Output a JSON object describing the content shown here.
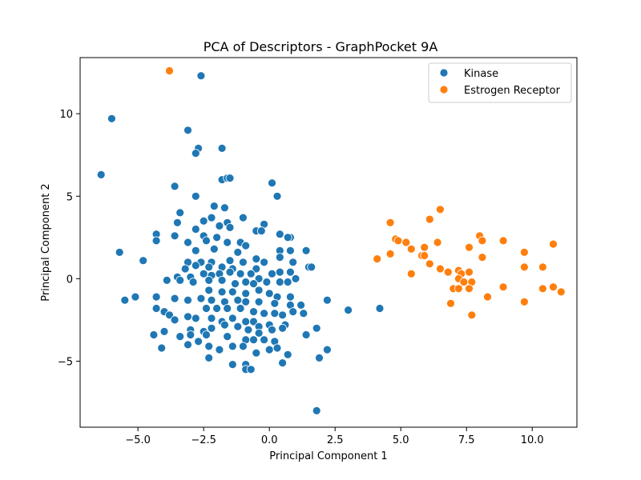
{
  "chart_data": {
    "type": "scatter",
    "title": "PCA of Descriptors - GraphPocket 9A",
    "xlabel": "Principal Component 1",
    "ylabel": "Principal Component 2",
    "xlim": [
      -7.2,
      11.7
    ],
    "ylim": [
      -9.0,
      13.4
    ],
    "xticks": [
      -5.0,
      -2.5,
      0.0,
      2.5,
      5.0,
      7.5,
      10.0
    ],
    "xtick_labels": [
      "−5.0",
      "−2.5",
      "0.0",
      "2.5",
      "5.0",
      "7.5",
      "10.0"
    ],
    "yticks": [
      -5,
      0,
      5,
      10
    ],
    "ytick_labels": [
      "−5",
      "0",
      "5",
      "10"
    ],
    "grid": false,
    "legend_position": "top-right",
    "series": [
      {
        "name": "Kinase",
        "color": "#1f77b4",
        "points": [
          [
            -2.6,
            12.3
          ],
          [
            -6.0,
            9.7
          ],
          [
            -3.1,
            9.0
          ],
          [
            -2.7,
            7.9
          ],
          [
            -2.8,
            7.6
          ],
          [
            -1.8,
            7.9
          ],
          [
            -6.4,
            6.3
          ],
          [
            -1.8,
            6.0
          ],
          [
            -1.6,
            6.1
          ],
          [
            -1.5,
            6.1
          ],
          [
            -3.6,
            5.6
          ],
          [
            0.1,
            5.8
          ],
          [
            -2.8,
            5.0
          ],
          [
            0.3,
            5.0
          ],
          [
            -1.7,
            4.3
          ],
          [
            -2.1,
            4.4
          ],
          [
            -3.4,
            4.0
          ],
          [
            -2.2,
            3.7
          ],
          [
            -1.0,
            3.7
          ],
          [
            -3.5,
            3.4
          ],
          [
            -2.5,
            3.5
          ],
          [
            -1.6,
            3.4
          ],
          [
            -1.9,
            3.2
          ],
          [
            -1.5,
            3.1
          ],
          [
            -0.2,
            3.3
          ],
          [
            -2.8,
            3.0
          ],
          [
            -0.5,
            2.9
          ],
          [
            -0.3,
            2.9
          ],
          [
            -4.3,
            2.7
          ],
          [
            -3.6,
            2.6
          ],
          [
            -2.5,
            2.6
          ],
          [
            -2.0,
            2.5
          ],
          [
            0.4,
            2.7
          ],
          [
            0.8,
            2.5
          ],
          [
            -4.3,
            2.3
          ],
          [
            -3.1,
            2.2
          ],
          [
            -2.4,
            2.3
          ],
          [
            -1.6,
            2.2
          ],
          [
            -1.1,
            2.2
          ],
          [
            -0.9,
            2.0
          ],
          [
            0.7,
            2.5
          ],
          [
            -5.7,
            1.6
          ],
          [
            -2.8,
            1.7
          ],
          [
            -2.1,
            1.8
          ],
          [
            -1.2,
            1.6
          ],
          [
            0.4,
            1.7
          ],
          [
            0.8,
            1.7
          ],
          [
            1.4,
            1.7
          ],
          [
            -4.8,
            1.1
          ],
          [
            -3.1,
            1.0
          ],
          [
            -2.6,
            1.0
          ],
          [
            -2.2,
            1.0
          ],
          [
            -1.5,
            1.1
          ],
          [
            -1.0,
            1.0
          ],
          [
            -0.5,
            1.2
          ],
          [
            -0.2,
            1.0
          ],
          [
            0.4,
            1.3
          ],
          [
            0.9,
            1.0
          ],
          [
            1.5,
            0.7
          ],
          [
            1.6,
            0.7
          ],
          [
            -3.2,
            0.6
          ],
          [
            -2.8,
            0.8
          ],
          [
            -2.3,
            0.7
          ],
          [
            -1.8,
            0.7
          ],
          [
            -1.4,
            0.6
          ],
          [
            -0.5,
            0.6
          ],
          [
            0.4,
            0.4
          ],
          [
            0.8,
            0.4
          ],
          [
            1.0,
            0.0
          ],
          [
            -3.5,
            0.1
          ],
          [
            -3.0,
            0.1
          ],
          [
            -2.5,
            0.3
          ],
          [
            -2.2,
            0.2
          ],
          [
            -1.9,
            0.3
          ],
          [
            -1.5,
            0.4
          ],
          [
            -1.1,
            0.3
          ],
          [
            -0.7,
            0.3
          ],
          [
            -0.4,
            0.0
          ],
          [
            0.1,
            0.3
          ],
          [
            0.4,
            -0.2
          ],
          [
            0.7,
            -0.2
          ],
          [
            -3.9,
            -0.1
          ],
          [
            -3.4,
            -0.1
          ],
          [
            -2.9,
            -0.2
          ],
          [
            -2.3,
            -0.1
          ],
          [
            -1.8,
            -0.1
          ],
          [
            -1.3,
            -0.3
          ],
          [
            -0.9,
            -0.2
          ],
          [
            -0.6,
            -0.3
          ],
          [
            -0.1,
            -0.2
          ],
          [
            -4.3,
            -1.1
          ],
          [
            -2.3,
            -0.7
          ],
          [
            -1.8,
            -0.8
          ],
          [
            -1.4,
            -0.8
          ],
          [
            -0.9,
            -0.9
          ],
          [
            -0.4,
            -0.7
          ],
          [
            0.0,
            -0.9
          ],
          [
            0.3,
            -1.1
          ],
          [
            0.8,
            -1.1
          ],
          [
            -5.5,
            -1.3
          ],
          [
            -5.1,
            -1.1
          ],
          [
            -4.3,
            -1.8
          ],
          [
            -3.6,
            -1.2
          ],
          [
            -3.1,
            -1.3
          ],
          [
            -2.6,
            -1.2
          ],
          [
            -2.2,
            -1.3
          ],
          [
            -1.7,
            -1.4
          ],
          [
            -1.2,
            -1.3
          ],
          [
            -0.9,
            -1.4
          ],
          [
            -0.4,
            -1.4
          ],
          [
            0.2,
            -1.5
          ],
          [
            0.8,
            -1.6
          ],
          [
            1.2,
            -1.6
          ],
          [
            2.2,
            -1.3
          ],
          [
            -4.0,
            -2.0
          ],
          [
            -3.1,
            -2.3
          ],
          [
            -2.4,
            -1.8
          ],
          [
            -2.0,
            -1.8
          ],
          [
            -1.6,
            -1.8
          ],
          [
            -1.1,
            -1.8
          ],
          [
            -0.6,
            -2.0
          ],
          [
            -0.2,
            -2.1
          ],
          [
            0.2,
            -2.1
          ],
          [
            0.5,
            -2.2
          ],
          [
            0.9,
            -2.0
          ],
          [
            1.3,
            -2.1
          ],
          [
            3.0,
            -1.9
          ],
          [
            4.2,
            -1.8
          ],
          [
            -3.8,
            -2.2
          ],
          [
            -3.6,
            -2.5
          ],
          [
            -2.8,
            -2.4
          ],
          [
            -2.2,
            -2.4
          ],
          [
            -1.8,
            -2.6
          ],
          [
            -1.4,
            -2.4
          ],
          [
            -0.9,
            -2.6
          ],
          [
            -0.6,
            -2.6
          ],
          [
            -0.4,
            -2.9
          ],
          [
            0.0,
            -2.8
          ],
          [
            0.6,
            -2.8
          ],
          [
            -4.0,
            -3.2
          ],
          [
            -3.0,
            -3.1
          ],
          [
            -2.5,
            -3.2
          ],
          [
            -2.2,
            -3.0
          ],
          [
            -1.7,
            -2.8
          ],
          [
            -1.2,
            -2.9
          ],
          [
            -0.8,
            -3.1
          ],
          [
            -0.4,
            -3.3
          ],
          [
            0.1,
            -3.1
          ],
          [
            0.5,
            -3.0
          ],
          [
            1.8,
            -3.0
          ],
          [
            -4.4,
            -3.4
          ],
          [
            -3.4,
            -3.5
          ],
          [
            -3.0,
            -3.4
          ],
          [
            -2.4,
            -3.4
          ],
          [
            -1.6,
            -3.5
          ],
          [
            -0.9,
            -3.7
          ],
          [
            -0.6,
            -3.7
          ],
          [
            -0.2,
            -3.7
          ],
          [
            0.2,
            -3.8
          ],
          [
            1.4,
            -3.4
          ],
          [
            -4.1,
            -4.2
          ],
          [
            -3.1,
            -4.0
          ],
          [
            -2.7,
            -3.8
          ],
          [
            -2.3,
            -4.1
          ],
          [
            -1.9,
            -4.3
          ],
          [
            -1.4,
            -4.1
          ],
          [
            -1.0,
            -4.1
          ],
          [
            -0.5,
            -4.5
          ],
          [
            0.0,
            -4.3
          ],
          [
            0.3,
            -4.2
          ],
          [
            2.2,
            -4.3
          ],
          [
            -2.3,
            -4.8
          ],
          [
            -0.9,
            -5.2
          ],
          [
            -1.4,
            -5.2
          ],
          [
            -0.9,
            -5.5
          ],
          [
            -0.7,
            -5.5
          ],
          [
            0.5,
            -5.1
          ],
          [
            0.7,
            -4.6
          ],
          [
            1.9,
            -4.8
          ],
          [
            1.8,
            -8.0
          ]
        ]
      },
      {
        "name": "Estrogen Receptor",
        "color": "#ff7f0e",
        "points": [
          [
            -3.8,
            12.6
          ],
          [
            6.5,
            4.2
          ],
          [
            6.1,
            3.6
          ],
          [
            4.6,
            3.4
          ],
          [
            8.0,
            2.6
          ],
          [
            4.8,
            2.4
          ],
          [
            4.9,
            2.3
          ],
          [
            5.2,
            2.2
          ],
          [
            6.4,
            2.2
          ],
          [
            8.9,
            2.3
          ],
          [
            8.1,
            2.3
          ],
          [
            10.8,
            2.1
          ],
          [
            5.9,
            1.9
          ],
          [
            7.6,
            1.9
          ],
          [
            5.4,
            1.8
          ],
          [
            9.7,
            1.6
          ],
          [
            4.6,
            1.5
          ],
          [
            5.8,
            1.4
          ],
          [
            5.9,
            1.4
          ],
          [
            8.1,
            1.3
          ],
          [
            4.1,
            1.2
          ],
          [
            6.1,
            0.9
          ],
          [
            9.7,
            0.7
          ],
          [
            10.4,
            0.7
          ],
          [
            6.5,
            0.6
          ],
          [
            6.8,
            0.4
          ],
          [
            5.4,
            0.3
          ],
          [
            7.2,
            0.5
          ],
          [
            7.3,
            0.3
          ],
          [
            7.6,
            0.4
          ],
          [
            7.2,
            0.0
          ],
          [
            7.4,
            -0.2
          ],
          [
            7.7,
            -0.2
          ],
          [
            7.0,
            -0.6
          ],
          [
            7.2,
            -0.6
          ],
          [
            7.6,
            -0.6
          ],
          [
            8.9,
            -0.5
          ],
          [
            10.4,
            -0.6
          ],
          [
            10.8,
            -0.5
          ],
          [
            11.1,
            -0.8
          ],
          [
            8.3,
            -1.1
          ],
          [
            6.9,
            -1.5
          ],
          [
            9.7,
            -1.4
          ],
          [
            7.7,
            -2.2
          ]
        ]
      }
    ]
  }
}
